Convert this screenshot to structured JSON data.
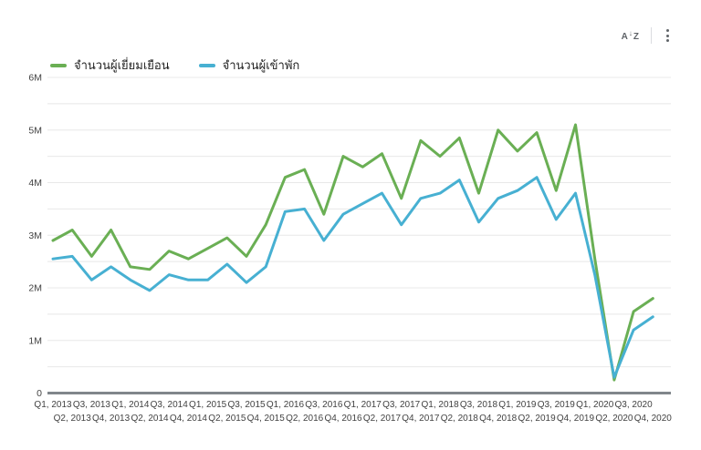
{
  "toolbar": {
    "sort_icon": {
      "a": "A",
      "arrow": "↓",
      "z": "Z"
    }
  },
  "colors": {
    "series_green": "#6aaf54",
    "series_blue": "#47b0d2",
    "gridline": "#e8e8e8",
    "axis_line": "#80868b",
    "tick_text": "#424242",
    "icon_gray": "#5f6368"
  },
  "chart_data": {
    "type": "line",
    "unit": "millions",
    "x": [
      "Q1, 2013",
      "Q2, 2013",
      "Q3, 2013",
      "Q4, 2013",
      "Q1, 2014",
      "Q2, 2014",
      "Q3, 2014",
      "Q4, 2014",
      "Q1, 2015",
      "Q2, 2015",
      "Q3, 2015",
      "Q4, 2015",
      "Q1, 2016",
      "Q2, 2016",
      "Q3, 2016",
      "Q4, 2016",
      "Q1, 2017",
      "Q2, 2017",
      "Q3, 2017",
      "Q4, 2017",
      "Q1, 2018",
      "Q2, 2018",
      "Q3, 2018",
      "Q4, 2018",
      "Q1, 2019",
      "Q2, 2019",
      "Q3, 2019",
      "Q4, 2019",
      "Q1, 2020",
      "Q2, 2020",
      "Q3, 2020",
      "Q4, 2020"
    ],
    "series": [
      {
        "name": "จำนวนผู้เยี่ยมเยือน",
        "color": "#6aaf54",
        "values": [
          2.9,
          3.1,
          2.6,
          3.1,
          2.4,
          2.35,
          2.7,
          2.55,
          2.75,
          2.95,
          2.6,
          3.2,
          4.1,
          4.25,
          3.4,
          4.5,
          4.3,
          4.55,
          3.7,
          4.8,
          4.5,
          4.85,
          3.8,
          5.0,
          4.6,
          4.95,
          3.85,
          5.1,
          2.55,
          0.25,
          1.55,
          1.8
        ]
      },
      {
        "name": "จำนวนผู้เข้าพัก",
        "color": "#47b0d2",
        "values": [
          2.55,
          2.6,
          2.15,
          2.4,
          2.15,
          1.95,
          2.25,
          2.15,
          2.15,
          2.45,
          2.1,
          2.4,
          3.45,
          3.5,
          2.9,
          3.4,
          3.6,
          3.8,
          3.2,
          3.7,
          3.8,
          4.05,
          3.25,
          3.7,
          3.85,
          4.1,
          3.3,
          3.8,
          2.25,
          0.3,
          1.2,
          1.45
        ]
      }
    ],
    "ylim": [
      0,
      6
    ],
    "y_tick_labels": [
      "0",
      "1M",
      "2M",
      "3M",
      "4M",
      "5M",
      "6M"
    ],
    "y_minor_grid_step": 0.5,
    "grid": true,
    "legend_position": "top-left",
    "x_label_rows": "staggered"
  }
}
